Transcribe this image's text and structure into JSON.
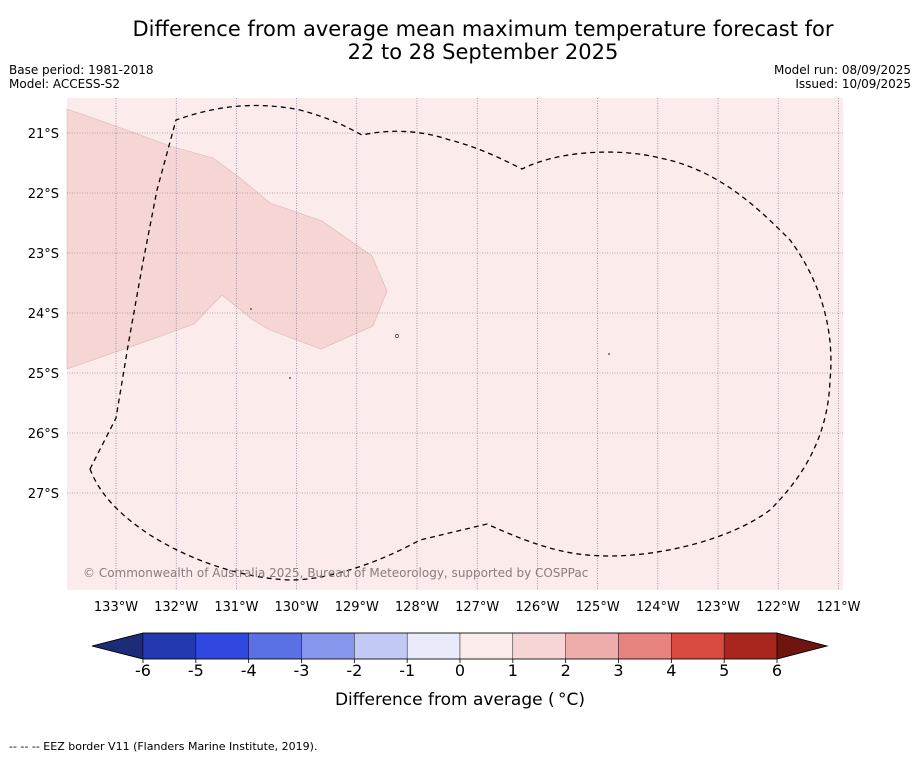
{
  "title": {
    "line1": "Difference from average mean maximum temperature forecast for",
    "line2": "22 to 28 September 2025"
  },
  "meta": {
    "base_period": "Base period: 1981-2018",
    "model": "Model: ACCESS-S2",
    "model_run": "Model run: 08/09/2025",
    "issued": "Issued: 10/09/2025"
  },
  "map": {
    "lat_labels": [
      "21°S",
      "22°S",
      "23°S",
      "24°S",
      "25°S",
      "26°S",
      "27°S"
    ],
    "lon_labels": [
      "133°W",
      "132°W",
      "131°W",
      "130°W",
      "129°W",
      "128°W",
      "127°W",
      "126°W",
      "125°W",
      "124°W",
      "123°W",
      "122°W",
      "121°W"
    ],
    "background_color": "#fbebeb",
    "shaded_color": "#f6d6d5",
    "copyright": "© Commonwealth of Australia 2025, Bureau of Meteorology, supported by COSPPac"
  },
  "colorbar": {
    "title": "Difference from average ( °C)",
    "tick_labels": [
      "-6",
      "-5",
      "-4",
      "-3",
      "-2",
      "-1",
      "0",
      "1",
      "2",
      "3",
      "4",
      "5",
      "6"
    ],
    "colors": [
      "#1d2c78",
      "#2438b0",
      "#3047e0",
      "#5a70e4",
      "#8696ec",
      "#c3c9f5",
      "#e9ebfb",
      "#fbebeb",
      "#f6d6d5",
      "#eeadaa",
      "#e7837f",
      "#d84a3f",
      "#a8261e",
      "#6e150f"
    ]
  },
  "footer": "--  --  -- EEZ border V11 (Flanders Marine Institute, 2019)."
}
